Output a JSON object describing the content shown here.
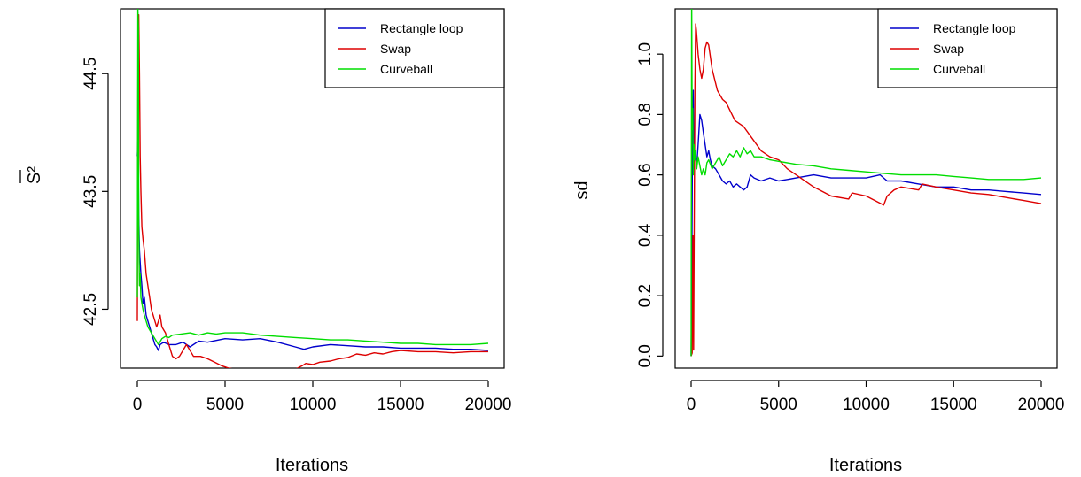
{
  "chart_data": [
    {
      "type": "line",
      "xlabel": "Iterations",
      "ylabel": "S²",
      "ylabel_overline": true,
      "xlim": [
        0,
        20000
      ],
      "ylim": [
        42.0,
        45.05
      ],
      "xticks": [
        0,
        5000,
        10000,
        15000,
        20000
      ],
      "yticks": [
        42.5,
        43.5,
        44.5
      ],
      "legend": "top-right",
      "grid": false,
      "series": [
        {
          "name": "Rectangle loop",
          "color": "#0000cc",
          "x": [
            0,
            40,
            80,
            120,
            160,
            200,
            260,
            320,
            400,
            500,
            600,
            700,
            800,
            900,
            1000,
            1100,
            1200,
            1300,
            1500,
            1800,
            2200,
            2600,
            3000,
            3500,
            4000,
            5000,
            6000,
            7000,
            8000,
            9000,
            9500,
            10000,
            11000,
            12000,
            13000,
            14000,
            15000,
            16000,
            17000,
            18000,
            19000,
            20000
          ],
          "y": [
            43.8,
            43.95,
            43.3,
            43.0,
            42.9,
            42.8,
            42.7,
            42.55,
            42.6,
            42.45,
            42.4,
            42.35,
            42.3,
            42.25,
            42.2,
            42.18,
            42.15,
            42.2,
            42.22,
            42.2,
            42.2,
            42.22,
            42.18,
            42.23,
            42.22,
            42.25,
            42.24,
            42.25,
            42.22,
            42.18,
            42.16,
            42.18,
            42.2,
            42.19,
            42.18,
            42.18,
            42.17,
            42.17,
            42.17,
            42.16,
            42.16,
            42.15
          ]
        },
        {
          "name": "Swap",
          "color": "#dd0000",
          "x": [
            0,
            40,
            80,
            120,
            160,
            200,
            260,
            320,
            400,
            500,
            600,
            700,
            800,
            900,
            1000,
            1100,
            1200,
            1300,
            1400,
            1600,
            1800,
            2000,
            2200,
            2400,
            2600,
            2800,
            3000,
            3200,
            3600,
            4000,
            4400,
            4800,
            5200,
            6000,
            7000,
            8000,
            9000,
            9400,
            9600,
            10000,
            10400,
            11000,
            11500,
            12000,
            12500,
            13000,
            13500,
            14000,
            14500,
            15000,
            16000,
            17000,
            18000,
            19000,
            20000
          ],
          "y": [
            42.4,
            44.8,
            45.0,
            44.5,
            43.8,
            43.5,
            43.2,
            43.1,
            43.0,
            42.8,
            42.7,
            42.6,
            42.5,
            42.45,
            42.4,
            42.35,
            42.4,
            42.45,
            42.35,
            42.3,
            42.2,
            42.1,
            42.08,
            42.1,
            42.15,
            42.2,
            42.15,
            42.1,
            42.1,
            42.08,
            42.05,
            42.02,
            42.0,
            41.98,
            41.97,
            41.97,
            41.99,
            42.02,
            42.04,
            42.03,
            42.05,
            42.06,
            42.08,
            42.09,
            42.12,
            42.11,
            42.13,
            42.12,
            42.14,
            42.15,
            42.14,
            42.14,
            42.13,
            42.14,
            42.14
          ]
        },
        {
          "name": "Curveball",
          "color": "#00dd00",
          "x": [
            0,
            30,
            60,
            80,
            120,
            160,
            200,
            260,
            320,
            400,
            500,
            600,
            800,
            1000,
            1200,
            1400,
            1600,
            1800,
            2000,
            2500,
            3000,
            3500,
            4000,
            4500,
            5000,
            6000,
            7000,
            8000,
            9000,
            10000,
            11000,
            12000,
            13000,
            14000,
            15000,
            16000,
            17000,
            18000,
            19000,
            20000
          ],
          "y": [
            42.6,
            45.05,
            44.9,
            43.2,
            42.7,
            42.8,
            42.6,
            42.55,
            42.5,
            42.45,
            42.4,
            42.35,
            42.3,
            42.25,
            42.2,
            42.25,
            42.27,
            42.26,
            42.28,
            42.29,
            42.3,
            42.28,
            42.3,
            42.29,
            42.3,
            42.3,
            42.28,
            42.27,
            42.26,
            42.25,
            42.24,
            42.24,
            42.23,
            42.22,
            42.21,
            42.21,
            42.2,
            42.2,
            42.2,
            42.21
          ]
        }
      ]
    },
    {
      "type": "line",
      "xlabel": "Iterations",
      "ylabel": "sd",
      "xlim": [
        0,
        20000
      ],
      "ylim": [
        -0.04,
        1.15
      ],
      "xticks": [
        0,
        5000,
        10000,
        15000,
        20000
      ],
      "yticks": [
        0.0,
        0.2,
        0.4,
        0.6,
        0.8,
        1.0
      ],
      "legend": "top-right",
      "grid": false,
      "series": [
        {
          "name": "Rectangle loop",
          "color": "#0000cc",
          "x": [
            0,
            40,
            80,
            120,
            160,
            200,
            260,
            320,
            400,
            500,
            600,
            700,
            800,
            900,
            1000,
            1100,
            1200,
            1400,
            1600,
            1800,
            2000,
            2200,
            2400,
            2600,
            2800,
            3000,
            3200,
            3400,
            3600,
            4000,
            4500,
            5000,
            6000,
            7000,
            8000,
            9000,
            10000,
            10800,
            11200,
            12000,
            13000,
            14000,
            15000,
            16000,
            17000,
            18000,
            19000,
            20000
          ],
          "y": [
            0.0,
            0.3,
            0.75,
            0.88,
            0.62,
            0.65,
            0.66,
            0.63,
            0.7,
            0.8,
            0.78,
            0.74,
            0.7,
            0.66,
            0.68,
            0.65,
            0.63,
            0.62,
            0.6,
            0.58,
            0.57,
            0.58,
            0.56,
            0.57,
            0.56,
            0.55,
            0.56,
            0.6,
            0.59,
            0.58,
            0.59,
            0.58,
            0.59,
            0.6,
            0.59,
            0.59,
            0.59,
            0.6,
            0.58,
            0.58,
            0.57,
            0.56,
            0.56,
            0.55,
            0.55,
            0.545,
            0.54,
            0.535
          ]
        },
        {
          "name": "Swap",
          "color": "#dd0000",
          "x": [
            0,
            60,
            100,
            140,
            180,
            220,
            260,
            300,
            400,
            500,
            600,
            700,
            800,
            900,
            1000,
            1200,
            1500,
            1800,
            2000,
            2500,
            3000,
            3500,
            4000,
            4500,
            5000,
            5500,
            6000,
            7000,
            8000,
            9000,
            9200,
            10000,
            11000,
            11200,
            11600,
            12000,
            13000,
            13200,
            14000,
            15000,
            16000,
            17000,
            18000,
            19000,
            20000
          ],
          "y": [
            0.0,
            0.01,
            0.4,
            0.02,
            0.5,
            0.9,
            1.1,
            1.08,
            1.0,
            0.95,
            0.92,
            0.95,
            1.02,
            1.04,
            1.03,
            0.95,
            0.88,
            0.85,
            0.84,
            0.78,
            0.76,
            0.72,
            0.68,
            0.66,
            0.65,
            0.62,
            0.6,
            0.56,
            0.53,
            0.52,
            0.54,
            0.53,
            0.5,
            0.53,
            0.55,
            0.56,
            0.55,
            0.57,
            0.56,
            0.55,
            0.54,
            0.535,
            0.525,
            0.515,
            0.505
          ]
        },
        {
          "name": "Curveball",
          "color": "#00dd00",
          "x": [
            0,
            30,
            60,
            90,
            120,
            160,
            200,
            260,
            320,
            400,
            500,
            600,
            700,
            800,
            900,
            1000,
            1200,
            1400,
            1600,
            1800,
            2000,
            2200,
            2400,
            2600,
            2800,
            3000,
            3200,
            3400,
            3600,
            4000,
            4500,
            5000,
            6000,
            7000,
            8000,
            9000,
            10000,
            11000,
            12000,
            13000,
            14000,
            15000,
            16000,
            17000,
            18000,
            19000,
            20000
          ],
          "y": [
            0.0,
            1.2,
            0.75,
            0.82,
            0.6,
            0.7,
            0.65,
            0.68,
            0.62,
            0.66,
            0.63,
            0.6,
            0.62,
            0.6,
            0.64,
            0.65,
            0.62,
            0.64,
            0.66,
            0.63,
            0.65,
            0.67,
            0.66,
            0.68,
            0.66,
            0.69,
            0.67,
            0.68,
            0.66,
            0.66,
            0.65,
            0.645,
            0.635,
            0.63,
            0.62,
            0.615,
            0.61,
            0.605,
            0.6,
            0.6,
            0.6,
            0.595,
            0.59,
            0.585,
            0.585,
            0.585,
            0.59
          ]
        }
      ]
    }
  ]
}
